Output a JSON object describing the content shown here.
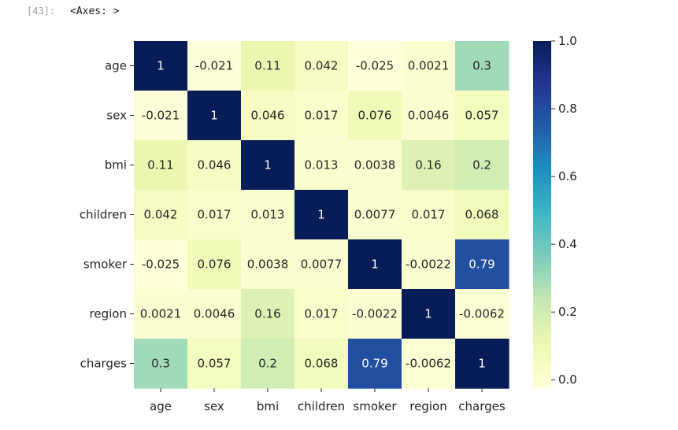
{
  "cell": {
    "prompt": "[43]:",
    "output_text": "<Axes: >"
  },
  "colors": {
    "cmap": "YlGnBu",
    "stops": [
      "#ffffd9",
      "#edf8b1",
      "#c7e9b4",
      "#7fcdbb",
      "#41b6c4",
      "#1d91c0",
      "#225ea8",
      "#253494",
      "#081d58"
    ]
  },
  "chart_data": {
    "type": "heatmap",
    "x_labels": [
      "age",
      "sex",
      "bmi",
      "children",
      "smoker",
      "region",
      "charges"
    ],
    "y_labels": [
      "age",
      "sex",
      "bmi",
      "children",
      "smoker",
      "region",
      "charges"
    ],
    "values": [
      [
        1,
        -0.021,
        0.11,
        0.042,
        -0.025,
        0.0021,
        0.3
      ],
      [
        -0.021,
        1,
        0.046,
        0.017,
        0.076,
        0.0046,
        0.057
      ],
      [
        0.11,
        0.046,
        1,
        0.013,
        0.0038,
        0.16,
        0.2
      ],
      [
        0.042,
        0.017,
        0.013,
        1,
        0.0077,
        0.017,
        0.068
      ],
      [
        -0.025,
        0.076,
        0.0038,
        0.0077,
        1,
        -0.0022,
        0.79
      ],
      [
        0.0021,
        0.0046,
        0.16,
        0.017,
        -0.0022,
        1,
        -0.0062
      ],
      [
        0.3,
        0.057,
        0.2,
        0.068,
        0.79,
        -0.0062,
        1
      ]
    ],
    "annotations": [
      [
        "1",
        "-0.021",
        "0.11",
        "0.042",
        "-0.025",
        "0.0021",
        "0.3"
      ],
      [
        "-0.021",
        "1",
        "0.046",
        "0.017",
        "0.076",
        "0.0046",
        "0.057"
      ],
      [
        "0.11",
        "0.046",
        "1",
        "0.013",
        "0.0038",
        "0.16",
        "0.2"
      ],
      [
        "0.042",
        "0.017",
        "0.013",
        "1",
        "0.0077",
        "0.017",
        "0.068"
      ],
      [
        "-0.025",
        "0.076",
        "0.0038",
        "0.0077",
        "1",
        "-0.0022",
        "0.79"
      ],
      [
        "0.0021",
        "0.0046",
        "0.16",
        "0.017",
        "-0.0022",
        "1",
        "-0.0062"
      ],
      [
        "0.3",
        "0.057",
        "0.2",
        "0.068",
        "0.79",
        "-0.0062",
        "1"
      ]
    ],
    "colorbar": {
      "range": [
        -0.025,
        1.0
      ],
      "ticks": [
        0.0,
        0.2,
        0.4,
        0.6,
        0.8,
        1.0
      ],
      "tick_labels": [
        "0.0",
        "0.2",
        "0.4",
        "0.6",
        "0.8",
        "1.0"
      ]
    }
  }
}
